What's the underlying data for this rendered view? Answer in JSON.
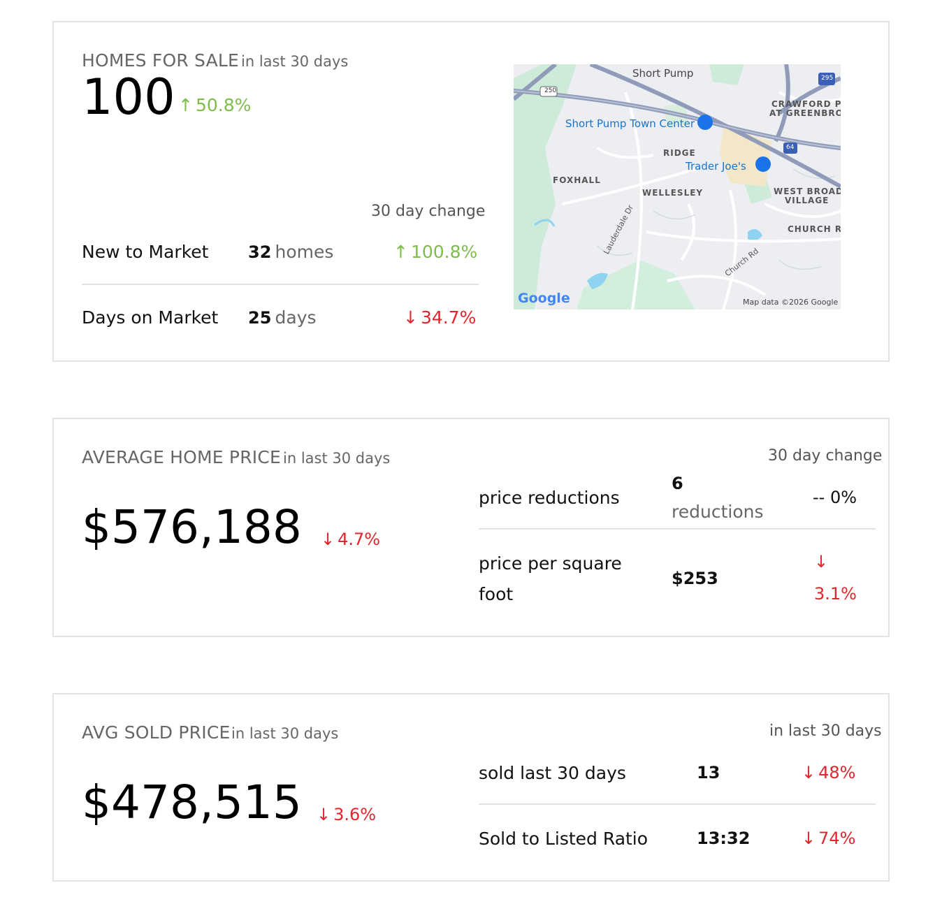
{
  "homes_for_sale": {
    "title": "HOMES FOR SALE",
    "subtitle": "in last 30 days",
    "count": "100",
    "change": "50.8%",
    "change_header": "30 day change",
    "rows": [
      {
        "label": "New to Market",
        "value": "32",
        "unit": "homes",
        "change": "100.8%",
        "direction": "up"
      },
      {
        "label": "Days on Market",
        "value": "25",
        "unit": "days",
        "change": "34.7%",
        "direction": "down"
      }
    ],
    "map": {
      "labels": {
        "short_pump": "Short Pump",
        "town_center": "Short Pump Town Center",
        "crawford_1": "CRAWFORD PA",
        "crawford_2": "AT GREENBRO",
        "ridge": "RIDGE",
        "trader_joes": "Trader Joe's",
        "foxhall": "FOXHALL",
        "wellesley": "WELLESLEY",
        "west_broad_1": "WEST BROAD",
        "west_broad_2": "VILLAGE",
        "church_ri": "CHURCH RI",
        "lauderdale": "Lauderdale Dr",
        "church_rd": "Church Rd",
        "google": "Google",
        "attribution": "Map data ©2026 Google",
        "shield_250": "250",
        "shield_295": "295",
        "shield_64": "64"
      }
    }
  },
  "avg_home_price": {
    "title": "AVERAGE HOME PRICE",
    "subtitle": "in last 30 days",
    "value": "$576,188",
    "change": "4.7%",
    "change_header": "30 day change",
    "rows": [
      {
        "label": "price reductions",
        "value": "6",
        "unit": "reductions",
        "change": "-- 0%"
      },
      {
        "label_1": "price per square",
        "label_2": "foot",
        "value": "$253",
        "change": "3.1%",
        "direction": "down"
      }
    ]
  },
  "avg_sold_price": {
    "title": "AVG SOLD PRICE",
    "subtitle": "in last 30 days",
    "value": "$478,515",
    "change": "3.6%",
    "right_header": "in last 30 days",
    "rows": [
      {
        "label": "sold last 30 days",
        "value": "13",
        "change": "48%",
        "direction": "down"
      },
      {
        "label": "Sold to Listed Ratio",
        "value": "13:32",
        "change": "74%",
        "direction": "down"
      }
    ]
  },
  "colors": {
    "up": "#7dbd4a",
    "down": "#e0262c",
    "muted": "#666666",
    "border": "#e3e3e3"
  }
}
